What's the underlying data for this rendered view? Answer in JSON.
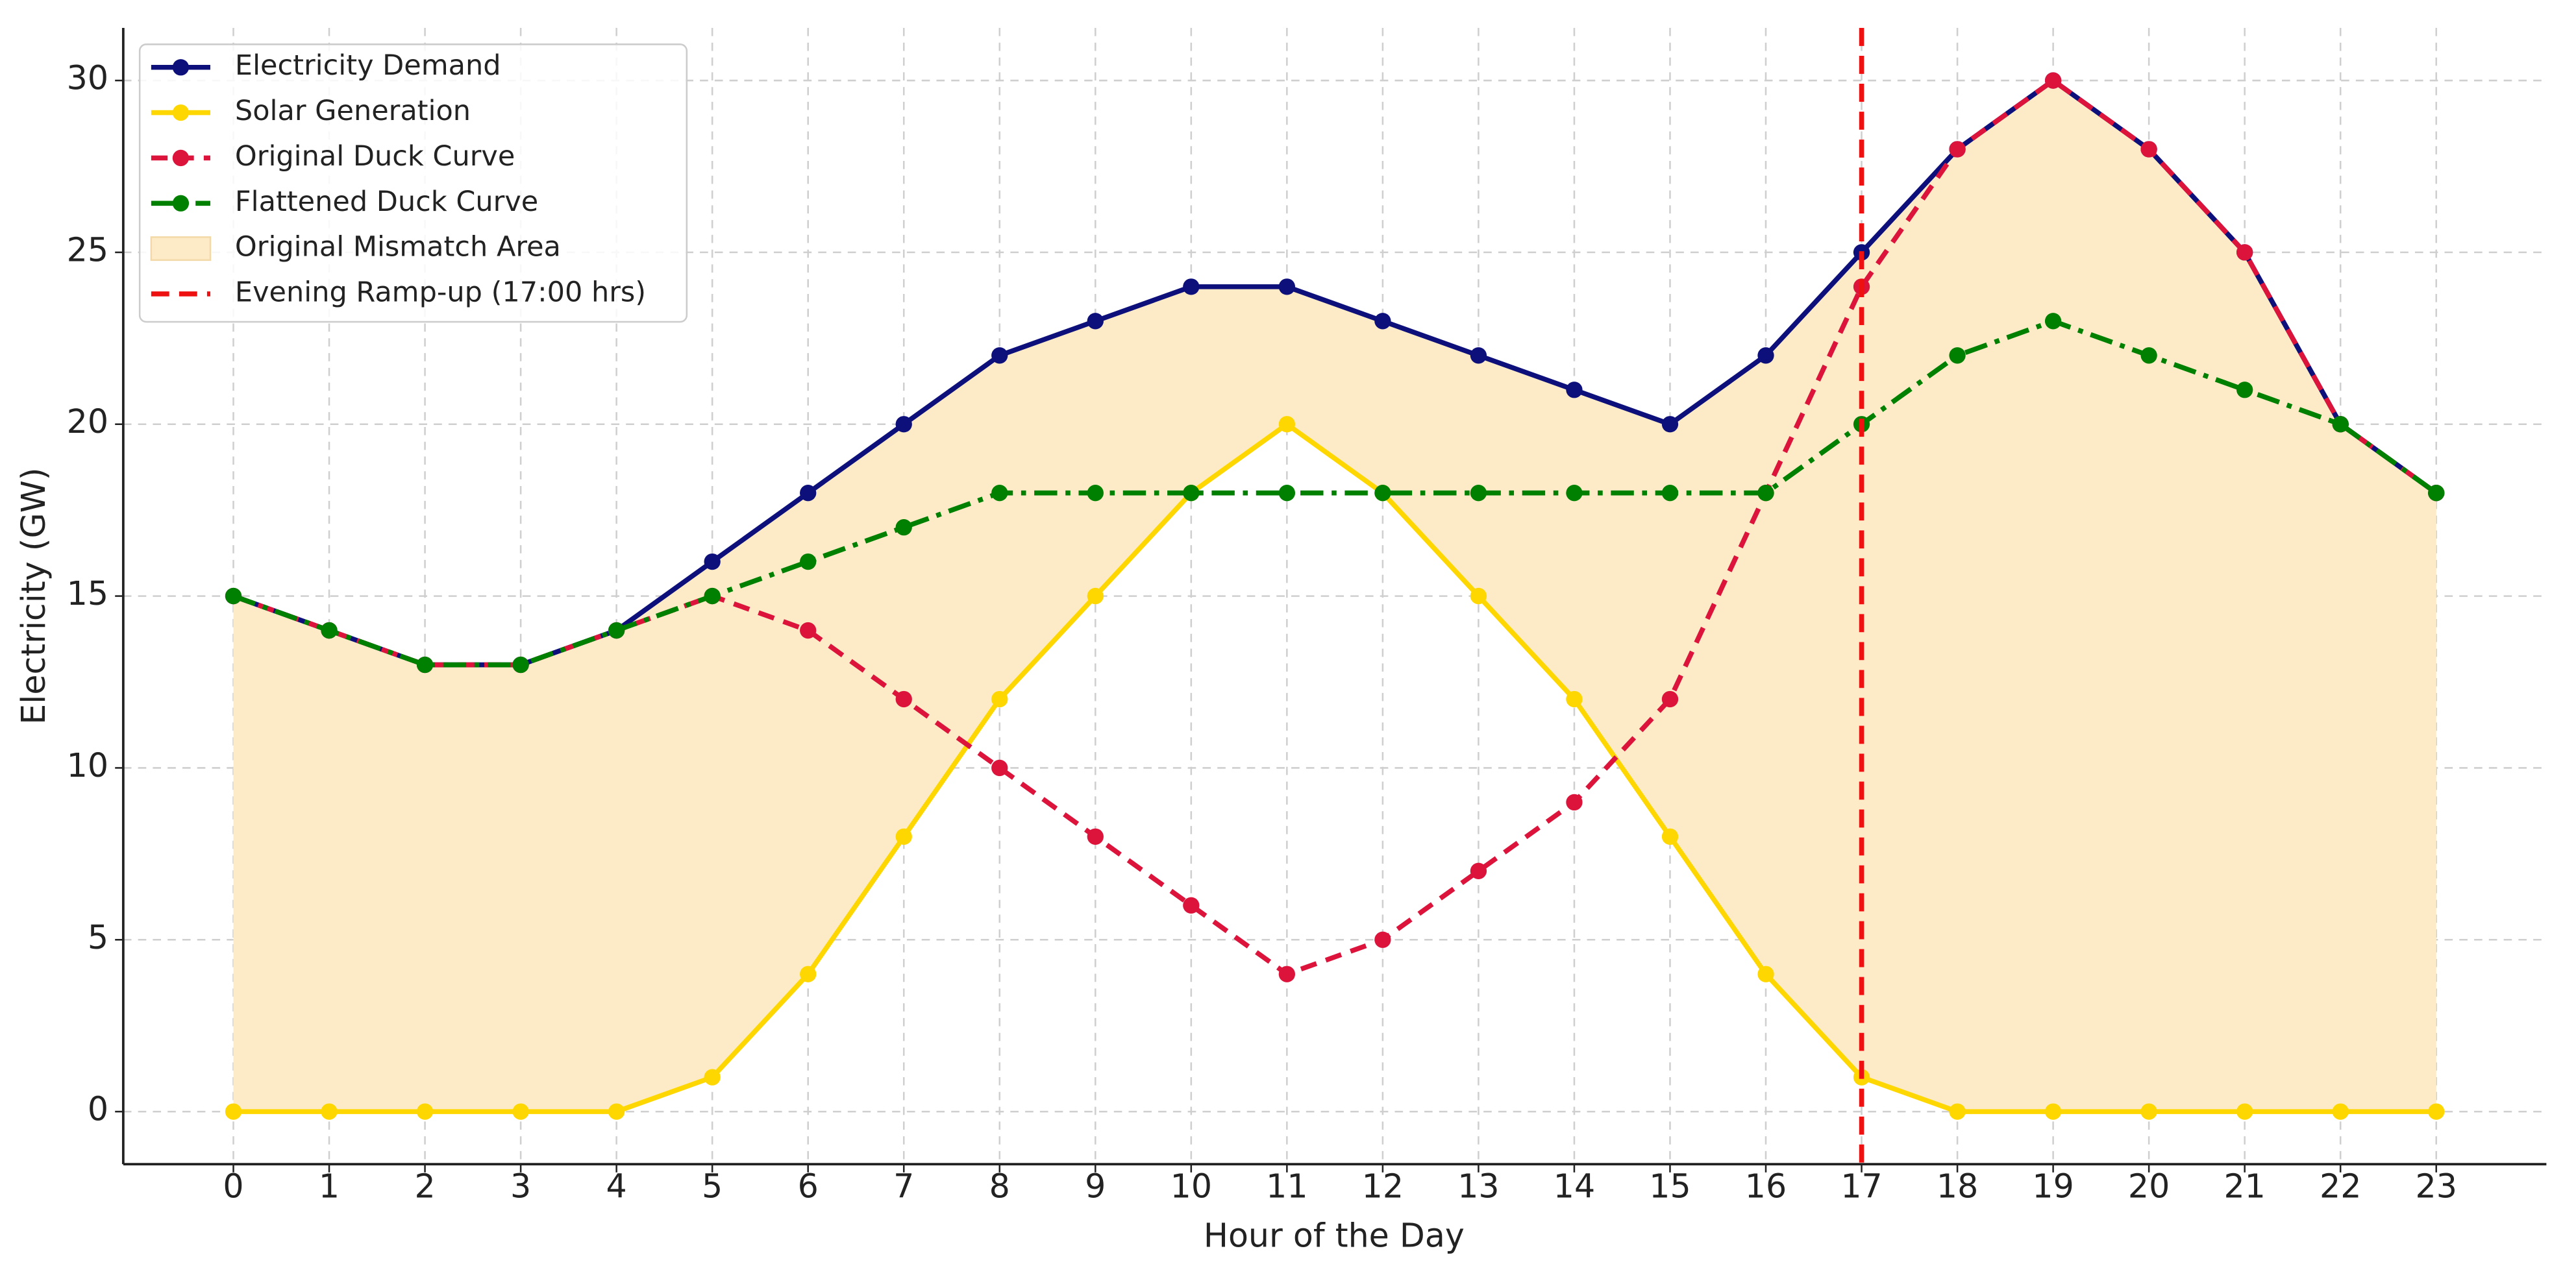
{
  "chart_data": {
    "type": "line",
    "xlabel": "Hour of the Day",
    "ylabel": "Electricity (GW)",
    "x": [
      0,
      1,
      2,
      3,
      4,
      5,
      6,
      7,
      8,
      9,
      10,
      11,
      12,
      13,
      14,
      15,
      16,
      17,
      18,
      19,
      20,
      21,
      22,
      23
    ],
    "series": [
      {
        "name": "Electricity Demand",
        "color": "#0d0f7a",
        "style": "solid",
        "values": [
          15,
          14,
          13,
          13,
          14,
          16,
          18,
          20,
          22,
          23,
          24,
          24,
          23,
          22,
          21,
          20,
          22,
          25,
          28,
          30,
          28,
          25,
          20,
          18
        ]
      },
      {
        "name": "Solar Generation",
        "color": "#ffd700",
        "style": "solid",
        "values": [
          0,
          0,
          0,
          0,
          0,
          1,
          4,
          8,
          12,
          15,
          18,
          20,
          18,
          15,
          12,
          8,
          4,
          1,
          0,
          0,
          0,
          0,
          0,
          0
        ]
      },
      {
        "name": "Original Duck Curve",
        "color": "#dc143c",
        "style": "dashed",
        "values": [
          15,
          14,
          13,
          13,
          14,
          15,
          14,
          12,
          10,
          8,
          6,
          4,
          5,
          7,
          9,
          12,
          18,
          24,
          28,
          30,
          28,
          25,
          20,
          18
        ]
      },
      {
        "name": "Flattened Duck Curve",
        "color": "#008000",
        "style": "dashdot",
        "values": [
          15,
          14,
          13,
          13,
          14,
          15,
          16,
          17,
          18,
          18,
          18,
          18,
          18,
          18,
          18,
          18,
          18,
          20,
          22,
          23,
          22,
          21,
          20,
          18
        ]
      }
    ],
    "fill": {
      "name": "Original Mismatch Area",
      "color": "#fdebc8",
      "between": [
        1,
        0
      ]
    },
    "vline": {
      "x": 17,
      "name": "Evening Ramp-up (17:00 hrs)",
      "color": "#ee1111"
    },
    "xlim": [
      -1.15,
      24.15
    ],
    "xticks": [
      0,
      1,
      2,
      3,
      4,
      5,
      6,
      7,
      8,
      9,
      10,
      11,
      12,
      13,
      14,
      15,
      16,
      17,
      18,
      19,
      20,
      21,
      22,
      23
    ],
    "ylim": [
      -1.53,
      31.53
    ],
    "yticks": [
      0,
      5,
      10,
      15,
      20,
      25,
      30
    ],
    "grid": true,
    "legend": "upper left"
  }
}
